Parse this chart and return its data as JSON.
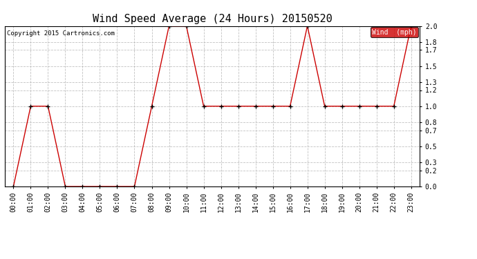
{
  "title": "Wind Speed Average (24 Hours) 20150520",
  "copyright_text": "Copyright 2015 Cartronics.com",
  "legend_label": "Wind  (mph)",
  "hours": [
    "00:00",
    "01:00",
    "02:00",
    "03:00",
    "04:00",
    "05:00",
    "06:00",
    "07:00",
    "08:00",
    "09:00",
    "10:00",
    "11:00",
    "12:00",
    "13:00",
    "14:00",
    "15:00",
    "16:00",
    "17:00",
    "18:00",
    "19:00",
    "20:00",
    "21:00",
    "22:00",
    "23:00"
  ],
  "wind_values": [
    0.0,
    1.0,
    1.0,
    0.0,
    0.0,
    0.0,
    0.0,
    0.0,
    1.0,
    2.0,
    2.0,
    1.0,
    1.0,
    1.0,
    1.0,
    1.0,
    1.0,
    2.0,
    1.0,
    1.0,
    1.0,
    1.0,
    1.0,
    2.0
  ],
  "line_color": "#cc0000",
  "marker_color": "#000000",
  "bg_color": "#ffffff",
  "grid_color": "#bbbbbb",
  "ylim": [
    0.0,
    2.0
  ],
  "yticks": [
    0.0,
    0.2,
    0.3,
    0.5,
    0.7,
    0.8,
    1.0,
    1.2,
    1.3,
    1.5,
    1.7,
    1.8,
    2.0
  ],
  "title_fontsize": 11,
  "tick_fontsize": 7,
  "copyright_fontsize": 6.5,
  "legend_bg": "#cc0000",
  "legend_text_color": "#ffffff",
  "legend_fontsize": 7
}
